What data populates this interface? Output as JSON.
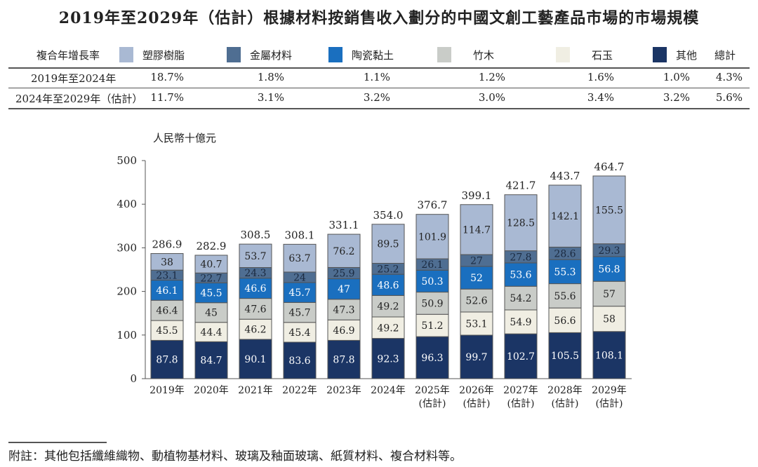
{
  "title": "2019年至2029年（估計）根據材料按銷售收入劃分的中國文創工藝產品市場的市場規模",
  "cagr_table": {
    "header": "複合年增長率",
    "total_label": "總計",
    "rows": [
      {
        "label": "2019年至2024年",
        "values": [
          "18.7%",
          "1.8%",
          "1.1%",
          "1.2%",
          "1.6%",
          "1.0%",
          "4.3%"
        ]
      },
      {
        "label": "2024年至2029年（估計）",
        "values": [
          "11.7%",
          "3.1%",
          "3.2%",
          "3.0%",
          "3.4%",
          "3.2%",
          "5.6%"
        ]
      }
    ]
  },
  "chart_data": {
    "type": "bar",
    "stacked": true,
    "ylabel": "人民幣十億元",
    "ylim": [
      0,
      500
    ],
    "yticks": [
      0,
      100,
      200,
      300,
      400,
      500
    ],
    "grid": false,
    "legend": "top",
    "categories": [
      "2019年",
      "2020年",
      "2021年",
      "2022年",
      "2023年",
      "2024年",
      "2025年\n(估計)",
      "2026年\n(估計)",
      "2027年\n(估計)",
      "2028年\n(估計)",
      "2029年\n(估計)"
    ],
    "totals": [
      "286.9",
      "282.9",
      "308.5",
      "308.1",
      "331.1",
      "354.0",
      "376.7",
      "399.1",
      "421.7",
      "443.7",
      "464.7"
    ],
    "series": [
      {
        "name": "其他",
        "color": "#1b3565",
        "label_color": "#ffffff",
        "values": [
          87.8,
          84.7,
          90.1,
          83.6,
          87.8,
          92.3,
          96.3,
          99.7,
          102.7,
          105.5,
          108.1
        ]
      },
      {
        "name": "石玉",
        "color": "#f0eee3",
        "label_color": "#222222",
        "values": [
          45.5,
          44.4,
          46.2,
          45.4,
          46.9,
          49.2,
          51.2,
          53.1,
          54.9,
          56.6,
          58.0
        ]
      },
      {
        "name": "竹木",
        "color": "#c9ccc8",
        "label_color": "#222222",
        "values": [
          46.4,
          45.0,
          47.6,
          45.7,
          47.3,
          49.2,
          50.9,
          52.6,
          54.2,
          55.6,
          57.0
        ]
      },
      {
        "name": "陶瓷黏土",
        "color": "#1a6fbf",
        "label_color": "#ffffff",
        "values": [
          46.1,
          45.5,
          46.6,
          45.7,
          47.0,
          48.6,
          50.3,
          52.0,
          53.6,
          55.3,
          56.8
        ]
      },
      {
        "name": "金屬材料",
        "color": "#4f6e92",
        "label_color": "#1b2a40",
        "values": [
          23.1,
          22.7,
          24.3,
          24.0,
          25.9,
          25.2,
          26.1,
          27.0,
          27.8,
          28.6,
          29.3
        ]
      },
      {
        "name": "塑膠樹脂",
        "color": "#a9b9d3",
        "label_color": "#222222",
        "values": [
          38.0,
          40.7,
          53.7,
          63.7,
          76.2,
          89.5,
          101.9,
          114.7,
          128.5,
          142.1,
          155.5
        ]
      }
    ]
  },
  "note": "附註：其他包括纖維織物、動植物基材料、玻璃及釉面玻璃、紙質材料、複合材料等。"
}
